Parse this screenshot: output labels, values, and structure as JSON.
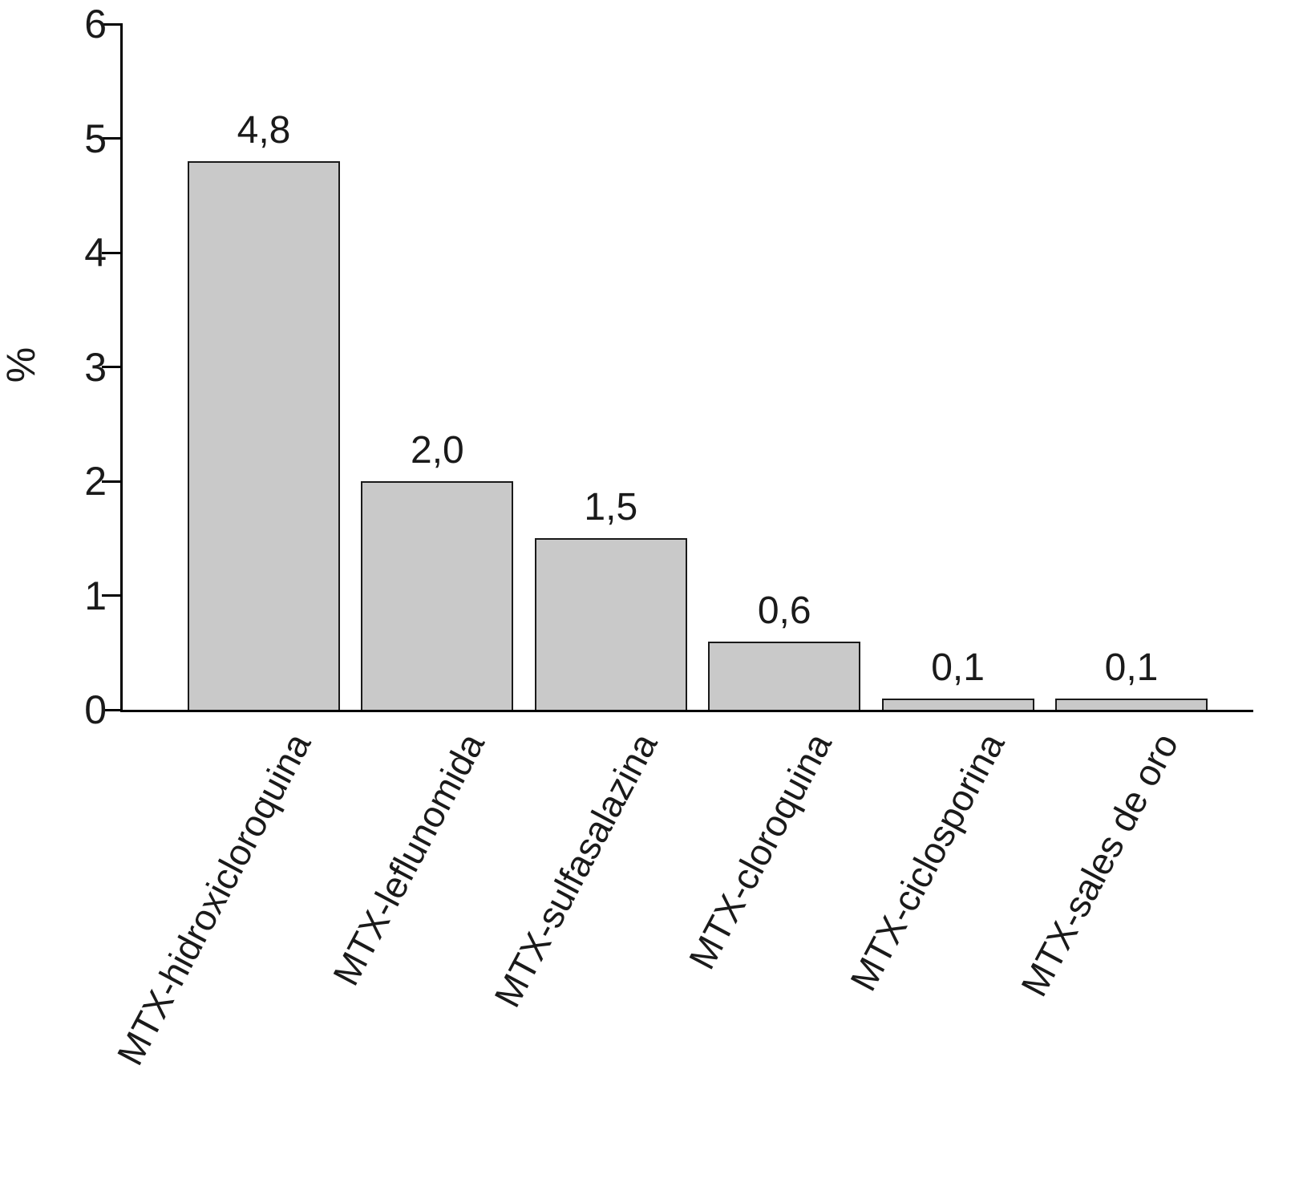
{
  "chart_data": {
    "type": "bar",
    "title": "",
    "xlabel": "",
    "ylabel": "%",
    "categories": [
      "MTX-hidroxicloroquina",
      "MTX-leflunomida",
      "MTX-sulfasalazina",
      "MTX-cloroquina",
      "MTX-ciclosporina",
      "MTX-sales de oro"
    ],
    "values": [
      4.8,
      2.0,
      1.5,
      0.6,
      0.1,
      0.1
    ],
    "value_labels": [
      "4,8",
      "2,0",
      "1,5",
      "0,6",
      "0,1",
      "0,1"
    ],
    "ylim": [
      0,
      6
    ],
    "yticks": [
      0,
      1,
      2,
      3,
      4,
      5,
      6
    ],
    "ytick_labels": [
      "0",
      "1",
      "2",
      "3",
      "4",
      "5",
      "6"
    ],
    "grid": false,
    "legend": null,
    "bar_color": "#c9c9c9",
    "bar_border_color": "#1a1a1a",
    "axis_color": "#000000",
    "background_color": "#ffffff"
  }
}
